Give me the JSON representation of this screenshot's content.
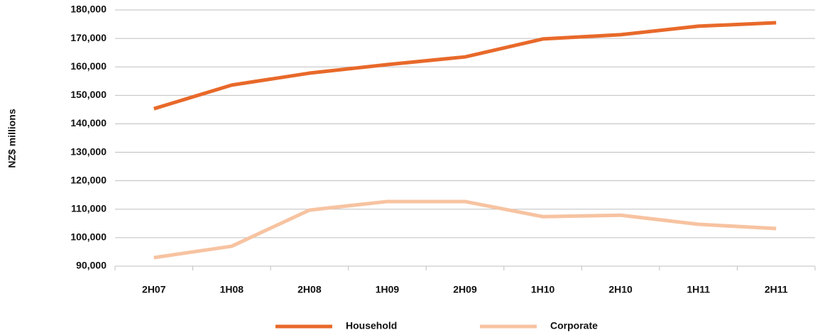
{
  "chart_data": {
    "type": "line",
    "y_label": "NZ$ millions",
    "categories": [
      "2H07",
      "1H08",
      "2H08",
      "1H09",
      "2H09",
      "1H10",
      "2H10",
      "1H11",
      "2H11"
    ],
    "series": [
      {
        "name": "Household",
        "color": "#e8692a",
        "values": [
          145300,
          153600,
          157800,
          160800,
          163500,
          169800,
          171300,
          174300,
          175500
        ]
      },
      {
        "name": "Corporate",
        "color": "#f7c3a1",
        "values": [
          93000,
          97000,
          109700,
          112700,
          112700,
          107400,
          107900,
          104700,
          103200
        ]
      }
    ],
    "ylim": [
      90000,
      180000
    ],
    "yticks": [
      {
        "value": 90000,
        "label": "90,000"
      },
      {
        "value": 100000,
        "label": "100,000"
      },
      {
        "value": 110000,
        "label": "110,000"
      },
      {
        "value": 120000,
        "label": "120,000"
      },
      {
        "value": 130000,
        "label": "130,000"
      },
      {
        "value": 140000,
        "label": "140,000"
      },
      {
        "value": 150000,
        "label": "150,000"
      },
      {
        "value": 160000,
        "label": "160,000"
      },
      {
        "value": 170000,
        "label": "170,000"
      },
      {
        "value": 180000,
        "label": "180,000"
      }
    ],
    "grid": true,
    "legend": "bottom"
  }
}
